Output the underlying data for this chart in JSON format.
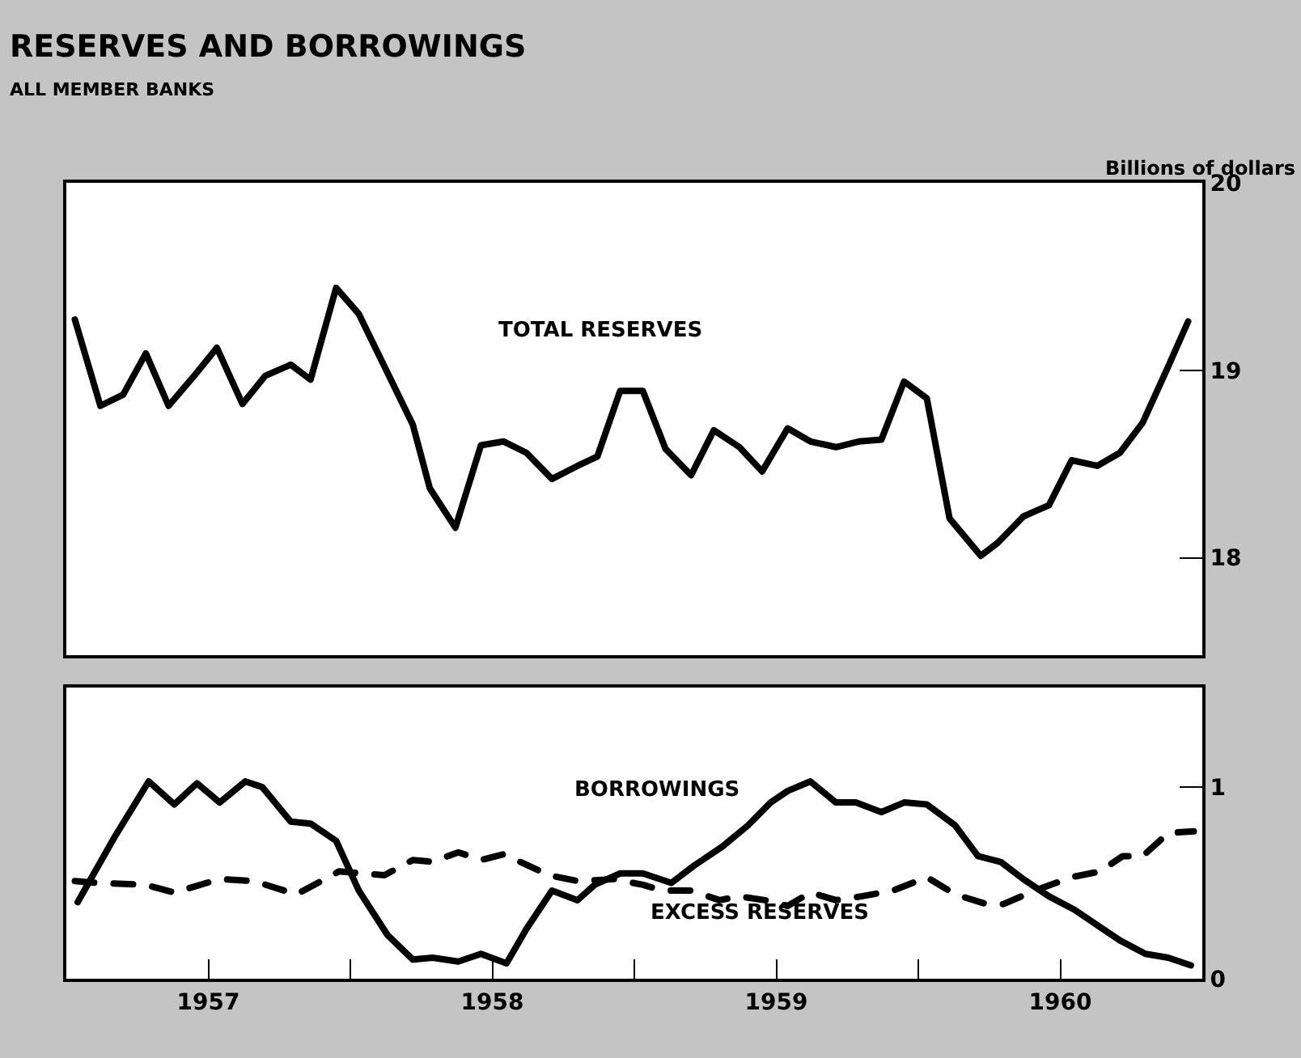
{
  "chart_data": [
    {
      "type": "line",
      "title": "RESERVES AND BORROWINGS",
      "subtitle": "ALL MEMBER BANKS",
      "ylabel": "Billions of dollars",
      "xlim": [
        1957,
        1961
      ],
      "ylim": [
        17.48,
        20
      ],
      "yticks": [
        18,
        19,
        20
      ],
      "tick_labels": "y",
      "grid": false,
      "legend": false,
      "line_style": "solid",
      "marker": "none",
      "series": [
        {
          "name": "TOTAL RESERVES",
          "color": "#000000",
          "x": [
            1957.03,
            1957.12,
            1957.2,
            1957.28,
            1957.36,
            1957.45,
            1957.53,
            1957.62,
            1957.7,
            1957.79,
            1957.86,
            1957.95,
            1958.03,
            1958.12,
            1958.22,
            1958.28,
            1958.37,
            1958.46,
            1958.54,
            1958.62,
            1958.71,
            1958.8,
            1958.87,
            1958.95,
            1959.03,
            1959.11,
            1959.2,
            1959.28,
            1959.37,
            1959.45,
            1959.54,
            1959.62,
            1959.71,
            1959.79,
            1959.87,
            1959.95,
            1960.03,
            1960.11,
            1960.22,
            1960.28,
            1960.37,
            1960.46,
            1960.54,
            1960.63,
            1960.71,
            1960.79,
            1960.88,
            1960.95
          ],
          "values": [
            19.27,
            18.81,
            18.87,
            19.09,
            18.81,
            18.97,
            19.12,
            18.82,
            18.97,
            19.03,
            18.95,
            19.44,
            19.3,
            19.02,
            18.71,
            18.37,
            18.16,
            18.6,
            18.62,
            18.56,
            18.42,
            18.49,
            18.54,
            18.89,
            18.89,
            18.58,
            18.44,
            18.68,
            18.59,
            18.46,
            18.69,
            18.62,
            18.59,
            18.62,
            18.63,
            18.94,
            18.85,
            18.21,
            18.01,
            18.08,
            18.22,
            18.28,
            18.52,
            18.49,
            18.56,
            18.72,
            19.02,
            19.26
          ]
        }
      ]
    },
    {
      "type": "line",
      "xlim": [
        1957,
        1961
      ],
      "xticks": [
        {
          "value": 1957.5,
          "label": "1957"
        },
        {
          "value": 1958,
          "label": null
        },
        {
          "value": 1958.5,
          "label": "1958"
        },
        {
          "value": 1959,
          "label": null
        },
        {
          "value": 1959.5,
          "label": "1959"
        },
        {
          "value": 1960,
          "label": null
        },
        {
          "value": 1960.5,
          "label": "1960"
        }
      ],
      "ylim": [
        0,
        1.52
      ],
      "yticks": [
        0,
        1
      ],
      "grid": false,
      "legend": false,
      "marker": "none",
      "series": [
        {
          "name": "BORROWINGS",
          "color": "#000000",
          "line_style": "solid",
          "x": [
            1957.04,
            1957.17,
            1957.29,
            1957.38,
            1957.46,
            1957.54,
            1957.63,
            1957.69,
            1957.79,
            1957.86,
            1957.95,
            1958.03,
            1958.13,
            1958.22,
            1958.29,
            1958.38,
            1958.46,
            1958.55,
            1958.62,
            1958.71,
            1958.8,
            1958.86,
            1958.95,
            1959.03,
            1959.13,
            1959.21,
            1959.31,
            1959.4,
            1959.48,
            1959.54,
            1959.62,
            1959.71,
            1959.78,
            1959.87,
            1959.95,
            1960.03,
            1960.13,
            1960.21,
            1960.29,
            1960.37,
            1960.46,
            1960.55,
            1960.64,
            1960.71,
            1960.8,
            1960.88,
            1960.96
          ],
          "values": [
            0.4,
            0.74,
            1.03,
            0.91,
            1.02,
            0.92,
            1.03,
            1.0,
            0.82,
            0.81,
            0.72,
            0.46,
            0.23,
            0.1,
            0.11,
            0.09,
            0.13,
            0.08,
            0.26,
            0.46,
            0.41,
            0.49,
            0.55,
            0.55,
            0.5,
            0.59,
            0.69,
            0.8,
            0.92,
            0.98,
            1.03,
            0.92,
            0.92,
            0.87,
            0.92,
            0.91,
            0.8,
            0.64,
            0.61,
            0.52,
            0.43,
            0.36,
            0.27,
            0.2,
            0.13,
            0.11,
            0.07
          ]
        },
        {
          "name": "EXCESS RESERVES",
          "color": "#000000",
          "line_style": "dashed",
          "x": [
            1957.03,
            1957.11,
            1957.28,
            1957.38,
            1957.54,
            1957.66,
            1957.81,
            1957.96,
            1958.12,
            1958.22,
            1958.29,
            1958.38,
            1958.46,
            1958.54,
            1958.7,
            1958.8,
            1958.93,
            1959.03,
            1959.1,
            1959.2,
            1959.3,
            1959.37,
            1959.46,
            1959.54,
            1959.62,
            1959.71,
            1959.8,
            1959.91,
            1960.03,
            1960.13,
            1960.24,
            1960.3,
            1960.41,
            1960.54,
            1960.64,
            1960.72,
            1960.79,
            1960.88,
            1960.97
          ],
          "values": [
            0.51,
            0.5,
            0.49,
            0.45,
            0.52,
            0.51,
            0.44,
            0.56,
            0.54,
            0.62,
            0.61,
            0.66,
            0.62,
            0.65,
            0.54,
            0.51,
            0.52,
            0.49,
            0.46,
            0.46,
            0.41,
            0.43,
            0.41,
            0.38,
            0.45,
            0.41,
            0.43,
            0.46,
            0.53,
            0.44,
            0.39,
            0.39,
            0.46,
            0.53,
            0.56,
            0.64,
            0.64,
            0.76,
            0.77
          ]
        }
      ]
    }
  ]
}
